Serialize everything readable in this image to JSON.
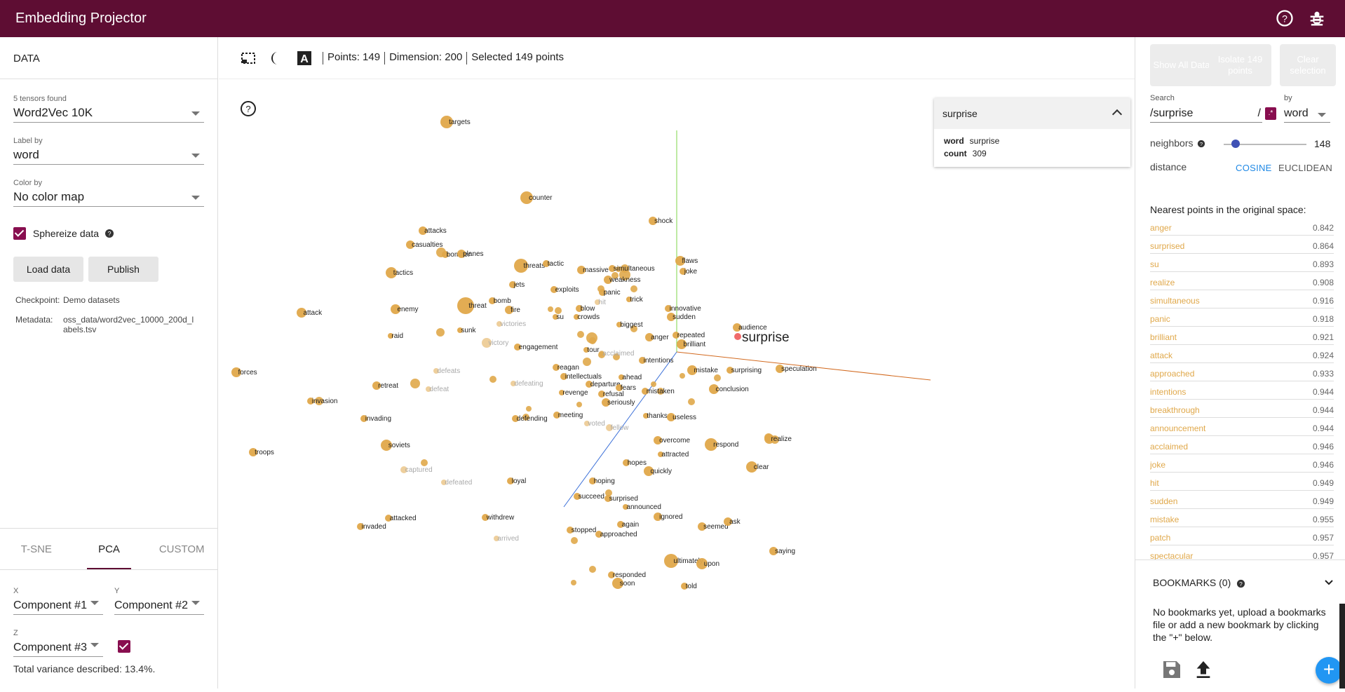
{
  "app": {
    "title": "Embedding Projector"
  },
  "left": {
    "section_title": "DATA",
    "tensors_label": "5 tensors found",
    "tensor_value": "Word2Vec 10K",
    "label_by_label": "Label by",
    "label_by_value": "word",
    "color_by_label": "Color by",
    "color_by_value": "No color map",
    "sphereize_label": "Sphereize data",
    "load_button": "Load data",
    "publish_button": "Publish",
    "checkpoint_key": "Checkpoint:",
    "checkpoint_value": "Demo datasets",
    "metadata_key": "Metadata:",
    "metadata_value": "oss_data/word2vec_10000_200d_labels.tsv",
    "tabs": [
      {
        "label": "T-SNE"
      },
      {
        "label": "PCA"
      },
      {
        "label": "CUSTOM"
      }
    ],
    "x_label": "X",
    "x_value": "Component #1",
    "y_label": "Y",
    "y_value": "Component #2",
    "z_label": "Z",
    "z_value": "Component #3",
    "variance_text": "Total variance described: 13.4%."
  },
  "toolbar": {
    "points": "Points: 149",
    "dimension": "Dimension: 200",
    "selected": "Selected 149 points"
  },
  "info_card": {
    "title": "surprise",
    "word_key": "word",
    "word_value": "surprise",
    "count_key": "count",
    "count_value": "309"
  },
  "right": {
    "show_all": "Show All Data",
    "isolate": "Isolate 149 points",
    "clear": "Clear selection",
    "search_label": "Search",
    "search_value": "/surprise",
    "search_slash": "/",
    "regex_glyph": ".*",
    "by_label": "by",
    "by_value": "word",
    "neighbors_label": "neighbors",
    "neighbors_value": "148",
    "distance_label": "distance",
    "cosine": "COSINE",
    "euclidean": "EUCLIDEAN",
    "nearest_title": "Nearest points in the original space:",
    "nearest": [
      {
        "word": "anger",
        "value": "0.842"
      },
      {
        "word": "surprised",
        "value": "0.864"
      },
      {
        "word": "su",
        "value": "0.893"
      },
      {
        "word": "realize",
        "value": "0.908"
      },
      {
        "word": "simultaneous",
        "value": "0.916"
      },
      {
        "word": "panic",
        "value": "0.918"
      },
      {
        "word": "brilliant",
        "value": "0.921"
      },
      {
        "word": "attack",
        "value": "0.924"
      },
      {
        "word": "approached",
        "value": "0.933"
      },
      {
        "word": "intentions",
        "value": "0.944"
      },
      {
        "word": "breakthrough",
        "value": "0.944"
      },
      {
        "word": "announcement",
        "value": "0.944"
      },
      {
        "word": "acclaimed",
        "value": "0.946"
      },
      {
        "word": "joke",
        "value": "0.946"
      },
      {
        "word": "hit",
        "value": "0.949"
      },
      {
        "word": "sudden",
        "value": "0.949"
      },
      {
        "word": "mistake",
        "value": "0.955"
      },
      {
        "word": "patch",
        "value": "0.957"
      },
      {
        "word": "spectacular",
        "value": "0.957"
      }
    ],
    "bookmarks_title": "BOOKMARKS (0)",
    "bookmarks_text": "No bookmarks yet, upload a bookmarks file or add a new bookmark by clicking the \"+\" below.",
    "fab": "+"
  },
  "colors": {
    "header": "#5e0d33",
    "point": "#e0a84a",
    "selected_point": "#f06a6a",
    "axis_x": "#d2691e",
    "axis_y": "#7cd64a",
    "axis_z": "#3a6fd8"
  },
  "scatter": {
    "points": [
      {
        "label": "targets",
        "faded": false
      },
      {
        "label": "counter",
        "faded": false
      },
      {
        "label": "shock",
        "faded": false
      },
      {
        "label": "attacks",
        "faded": false
      },
      {
        "label": "casualties",
        "faded": false
      },
      {
        "label": "bomber",
        "faded": false
      },
      {
        "label": "planes",
        "faded": false
      },
      {
        "label": "threats",
        "faded": false
      },
      {
        "label": "tactic",
        "faded": false
      },
      {
        "label": "tactics",
        "faded": false
      },
      {
        "label": "massive",
        "faded": false
      },
      {
        "label": "simultaneous",
        "faded": false
      },
      {
        "label": "flaws",
        "faded": false
      },
      {
        "label": "joke",
        "faded": false
      },
      {
        "label": "weakness",
        "faded": false
      },
      {
        "label": "jets",
        "faded": false
      },
      {
        "label": "exploits",
        "faded": false
      },
      {
        "label": "panic",
        "faded": false
      },
      {
        "label": "hit",
        "faded": true
      },
      {
        "label": "trick",
        "faded": false
      },
      {
        "label": "threat",
        "faded": false
      },
      {
        "label": "bomb",
        "faded": false
      },
      {
        "label": "fire",
        "faded": false
      },
      {
        "label": "enemy",
        "faded": false
      },
      {
        "label": "attack",
        "faded": false
      },
      {
        "label": "blow",
        "faded": false
      },
      {
        "label": "crowds",
        "faded": false
      },
      {
        "label": "innovative",
        "faded": false
      },
      {
        "label": "sudden",
        "faded": false
      },
      {
        "label": "victories",
        "faded": true
      },
      {
        "label": "su",
        "faded": false
      },
      {
        "label": "biggest",
        "faded": false
      },
      {
        "label": "audience",
        "faded": false
      },
      {
        "label": "raid",
        "faded": false
      },
      {
        "label": "sunk",
        "faded": false
      },
      {
        "label": "anger",
        "faded": false
      },
      {
        "label": "repeated",
        "faded": false
      },
      {
        "label": "victory",
        "faded": true
      },
      {
        "label": "engagement",
        "faded": false
      },
      {
        "label": "tour",
        "faded": false
      },
      {
        "label": "acclaimed",
        "faded": true
      },
      {
        "label": "brilliant",
        "faded": false
      },
      {
        "label": "intentions",
        "faded": false
      },
      {
        "label": "forces",
        "faded": false
      },
      {
        "label": "defeats",
        "faded": true
      },
      {
        "label": "reagan",
        "faded": false
      },
      {
        "label": "mistake",
        "faded": false
      },
      {
        "label": "surprising",
        "faded": false
      },
      {
        "label": "speculation",
        "faded": false
      },
      {
        "label": "intellectuals",
        "faded": false
      },
      {
        "label": "ahead",
        "faded": false
      },
      {
        "label": "retreat",
        "faded": false
      },
      {
        "label": "defeat",
        "faded": true
      },
      {
        "label": "defeating",
        "faded": true
      },
      {
        "label": "departure",
        "faded": false
      },
      {
        "label": "fears",
        "faded": false
      },
      {
        "label": "conclusion",
        "faded": false
      },
      {
        "label": "revenge",
        "faded": false
      },
      {
        "label": "refusal",
        "faded": false
      },
      {
        "label": "mistaken",
        "faded": false
      },
      {
        "label": "invasion",
        "faded": false
      },
      {
        "label": "seriously",
        "faded": false
      },
      {
        "label": "meeting",
        "faded": false
      },
      {
        "label": "thanks",
        "faded": false
      },
      {
        "label": "useless",
        "faded": false
      },
      {
        "label": "invading",
        "faded": false
      },
      {
        "label": "defending",
        "faded": false
      },
      {
        "label": "voted",
        "faded": true
      },
      {
        "label": "fellow",
        "faded": true
      },
      {
        "label": "troops",
        "faded": false
      },
      {
        "label": "soviets",
        "faded": false
      },
      {
        "label": "overcome",
        "faded": false
      },
      {
        "label": "respond",
        "faded": false
      },
      {
        "label": "realize",
        "faded": false
      },
      {
        "label": "attracted",
        "faded": false
      },
      {
        "label": "captured",
        "faded": true
      },
      {
        "label": "hopes",
        "faded": false
      },
      {
        "label": "quickly",
        "faded": false
      },
      {
        "label": "clear",
        "faded": false
      },
      {
        "label": "defeated",
        "faded": true
      },
      {
        "label": "loyal",
        "faded": false
      },
      {
        "label": "hoping",
        "faded": false
      },
      {
        "label": "succeed",
        "faded": false
      },
      {
        "label": "surprised",
        "faded": false
      },
      {
        "label": "announced",
        "faded": false
      },
      {
        "label": "attacked",
        "faded": false
      },
      {
        "label": "withdrew",
        "faded": false
      },
      {
        "label": "ignored",
        "faded": false
      },
      {
        "label": "invaded",
        "faded": false
      },
      {
        "label": "again",
        "faded": false
      },
      {
        "label": "seemed",
        "faded": false
      },
      {
        "label": "ask",
        "faded": false
      },
      {
        "label": "stopped",
        "faded": false
      },
      {
        "label": "approached",
        "faded": false
      },
      {
        "label": "arrived",
        "faded": true
      },
      {
        "label": "saying",
        "faded": false
      },
      {
        "label": "ultimately",
        "faded": false
      },
      {
        "label": "upon",
        "faded": false
      },
      {
        "label": "responded",
        "faded": false
      },
      {
        "label": "soon",
        "faded": false
      },
      {
        "label": "told",
        "faded": false
      }
    ],
    "focus_label": "surprise"
  }
}
